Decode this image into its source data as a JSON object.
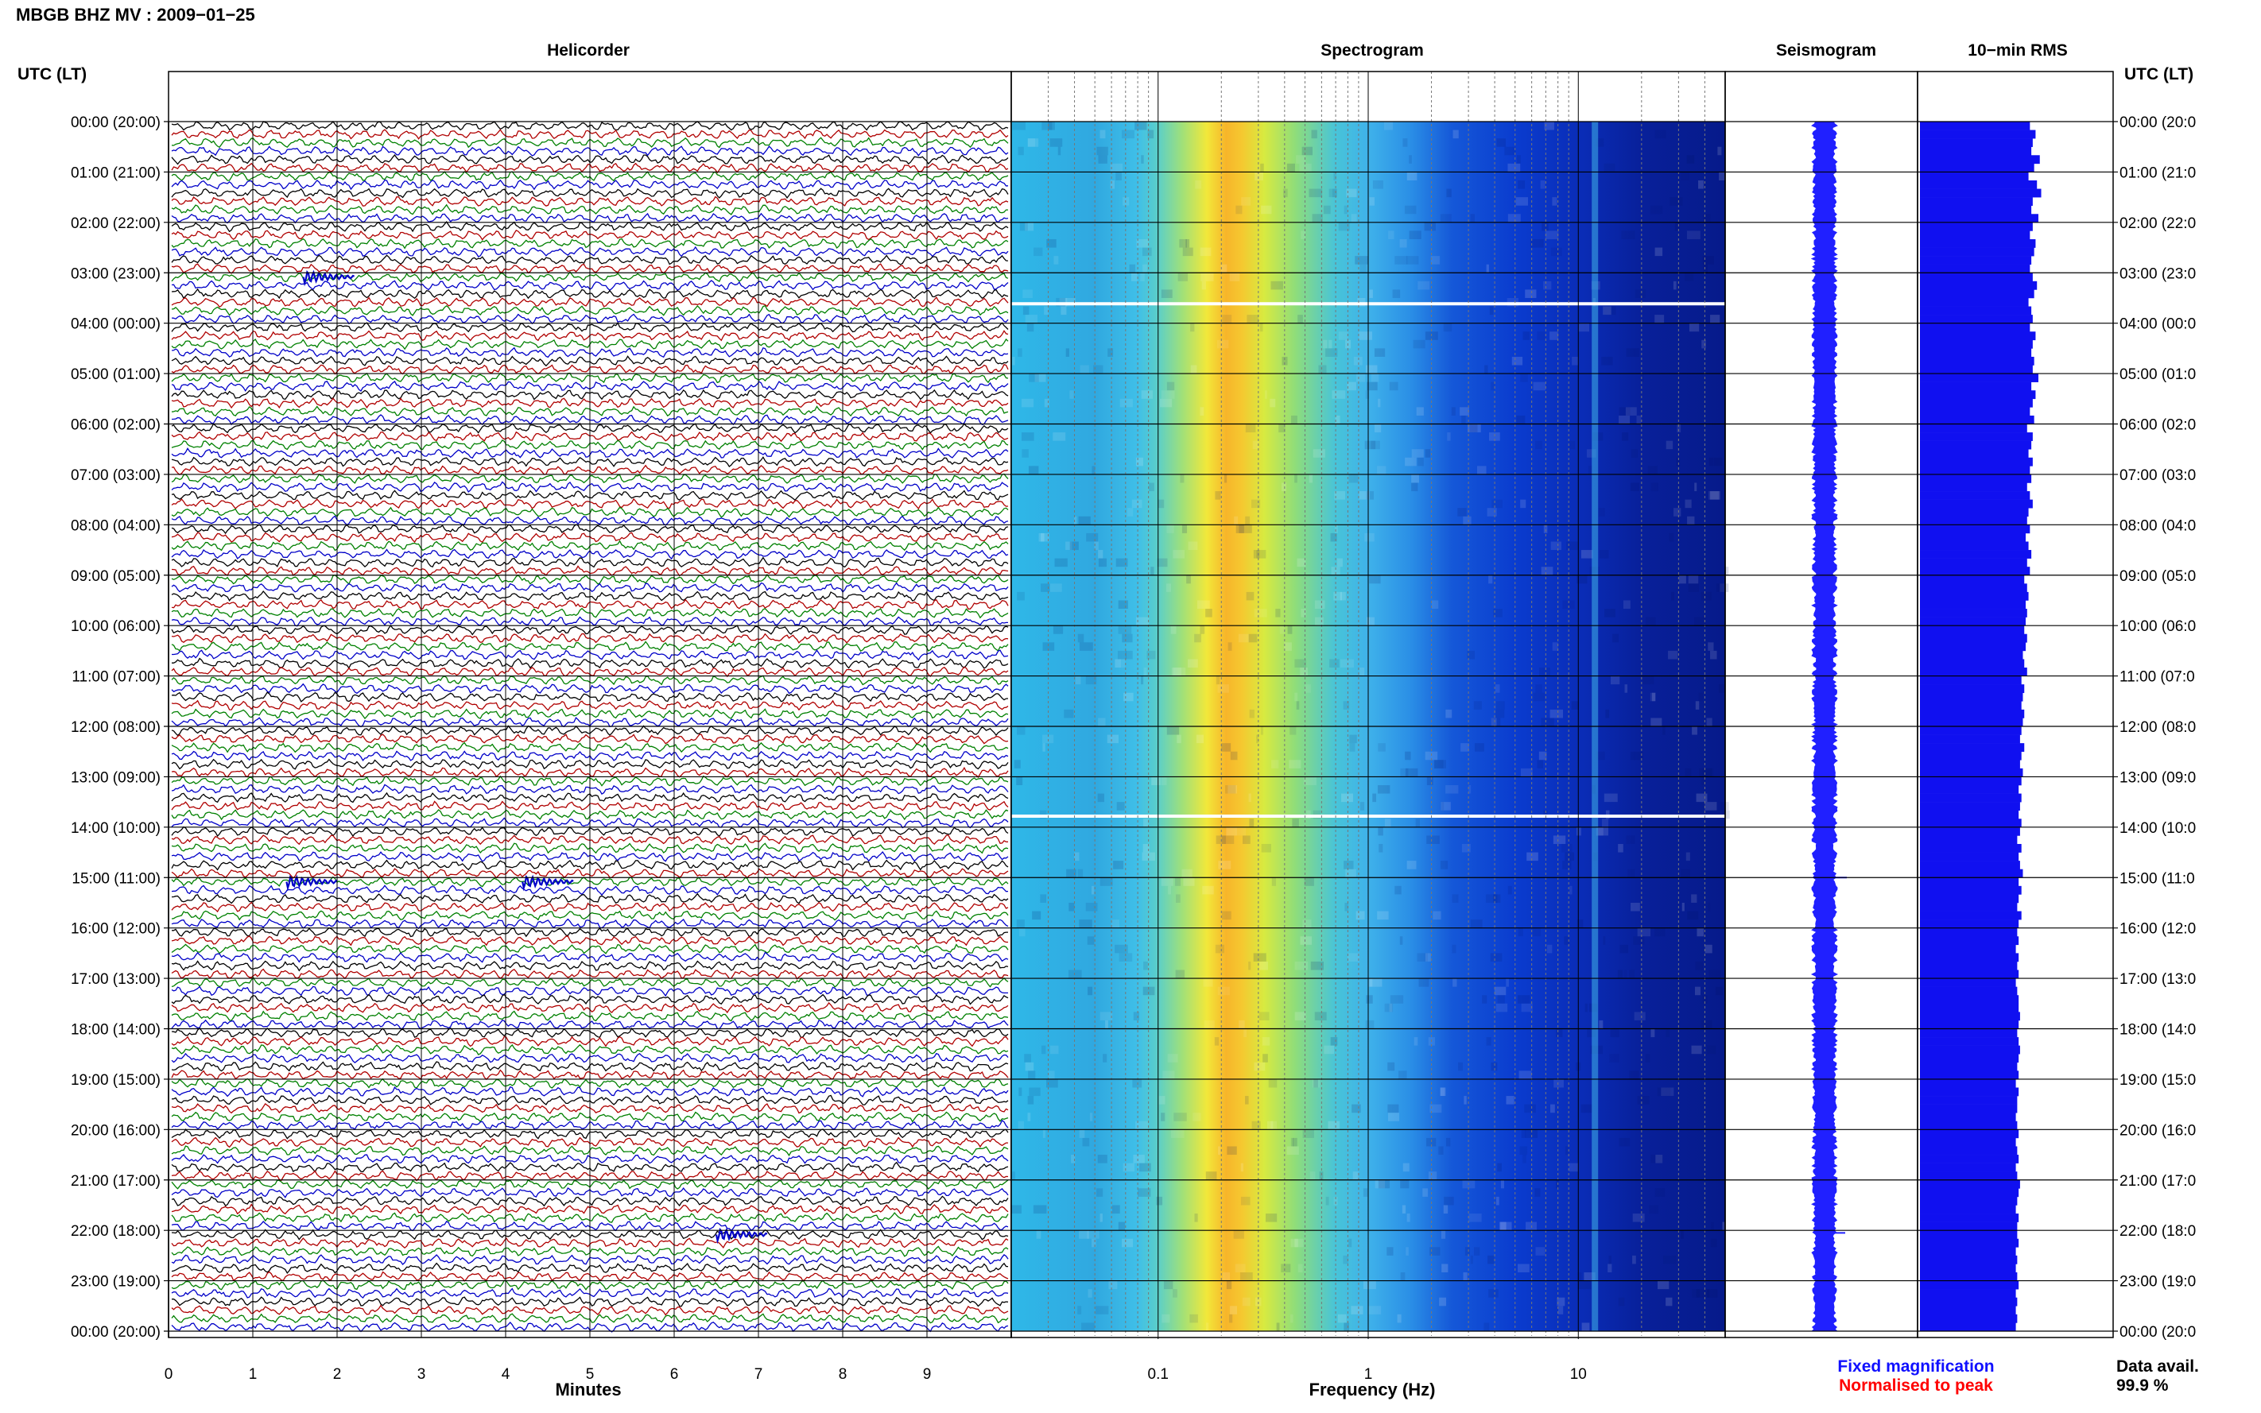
{
  "title": "MBGB BHZ MV : 2009−01−25",
  "panels": {
    "helicorder": "Helicorder",
    "spectrogram": "Spectrogram",
    "seismogram": "Seismogram",
    "rms": "10−min RMS"
  },
  "time_axis_label": "UTC (LT)",
  "time_labels": [
    "00:00 (20:00)",
    "01:00 (21:00)",
    "02:00 (22:00)",
    "03:00 (23:00)",
    "04:00 (00:00)",
    "05:00 (01:00)",
    "06:00 (02:00)",
    "07:00 (03:00)",
    "08:00 (04:00)",
    "09:00 (05:00)",
    "10:00 (06:00)",
    "11:00 (07:00)",
    "12:00 (08:00)",
    "13:00 (09:00)",
    "14:00 (10:00)",
    "15:00 (11:00)",
    "16:00 (12:00)",
    "17:00 (13:00)",
    "18:00 (14:00)",
    "19:00 (15:00)",
    "20:00 (16:00)",
    "21:00 (17:00)",
    "22:00 (18:00)",
    "23:00 (19:00)",
    "00:00 (20:00)"
  ],
  "right_time_labels": [
    "00:00 (20:0",
    "01:00 (21:0",
    "02:00 (22:0",
    "03:00 (23:0",
    "04:00 (00:0",
    "05:00 (01:0",
    "06:00 (02:0",
    "07:00 (03:0",
    "08:00 (04:0",
    "09:00 (05:0",
    "10:00 (06:0",
    "11:00 (07:0",
    "12:00 (08:0",
    "13:00 (09:0",
    "14:00 (10:0",
    "15:00 (11:0",
    "16:00 (12:0",
    "17:00 (13:0",
    "18:00 (14:0",
    "19:00 (15:0",
    "20:00 (16:0",
    "21:00 (17:0",
    "22:00 (18:0",
    "23:00 (19:0",
    "00:00 (20:0"
  ],
  "helicorder_xlabel": "Minutes",
  "helicorder_xticks": [
    "0",
    "1",
    "2",
    "3",
    "4",
    "5",
    "6",
    "7",
    "8",
    "9"
  ],
  "spectrogram_xlabel": "Frequency (Hz)",
  "spectrogram_xticks": [
    "0.1",
    "1",
    "10"
  ],
  "legend": {
    "fixed": "Fixed magnification",
    "normalised": "Normalised to peak"
  },
  "data_avail": {
    "label": "Data avail.",
    "value": "99.9 %"
  },
  "colors": {
    "trace_cycle": [
      "#000000",
      "#b00000",
      "#008000",
      "#0000c8"
    ],
    "seismogram": "#2020ff",
    "rms": "#1010f0",
    "legend_fixed": "#1010ff",
    "legend_normalised": "#ff0000"
  },
  "chart_data": [
    {
      "type": "line",
      "name": "Helicorder",
      "xlabel": "Minutes",
      "xlim": [
        0,
        10
      ],
      "rows_per_hour": 6,
      "hours": 24,
      "events": [
        {
          "hour": 3,
          "minute": 1.6
        },
        {
          "hour": 15,
          "minute": 1.4
        },
        {
          "hour": 15,
          "minute": 4.2
        },
        {
          "hour": 22,
          "minute": 6.5
        }
      ]
    },
    {
      "type": "heatmap",
      "name": "Spectrogram",
      "xlabel": "Frequency (Hz)",
      "xscale": "log",
      "xlim": [
        0.02,
        50
      ],
      "peak_band_hz": [
        0.15,
        0.4
      ],
      "spectral_line_hz": 12,
      "gaps_utc": [
        "03:35",
        "13:45"
      ]
    },
    {
      "type": "bar",
      "name": "10-min RMS",
      "orientation": "horizontal",
      "values": [
        0.78,
        0.82,
        0.8,
        0.79,
        0.85,
        0.81,
        0.77,
        0.83,
        0.86,
        0.8,
        0.79,
        0.84,
        0.8,
        0.78,
        0.82,
        0.81,
        0.79,
        0.78,
        0.8,
        0.83,
        0.81,
        0.77,
        0.79,
        0.8,
        0.78,
        0.82,
        0.8,
        0.79,
        0.81,
        0.8,
        0.84,
        0.79,
        0.82,
        0.8,
        0.78,
        0.81,
        0.76,
        0.8,
        0.79,
        0.77,
        0.8,
        0.78,
        0.79,
        0.76,
        0.78,
        0.8,
        0.77,
        0.76,
        0.78,
        0.75,
        0.77,
        0.79,
        0.76,
        0.78,
        0.74,
        0.76,
        0.77,
        0.75,
        0.76,
        0.75,
        0.74,
        0.76,
        0.75,
        0.73,
        0.74,
        0.76,
        0.72,
        0.74,
        0.73,
        0.72,
        0.74,
        0.73,
        0.72,
        0.71,
        0.74,
        0.72,
        0.71,
        0.73,
        0.72,
        0.7,
        0.72,
        0.71,
        0.7,
        0.72,
        0.71,
        0.69,
        0.72,
        0.7,
        0.71,
        0.73,
        0.7,
        0.72,
        0.7,
        0.69,
        0.72,
        0.7,
        0.69,
        0.7,
        0.68,
        0.7,
        0.69,
        0.7,
        0.68,
        0.69,
        0.7,
        0.7,
        0.71,
        0.7,
        0.69,
        0.7,
        0.71,
        0.7,
        0.69,
        0.7,
        0.68,
        0.7,
        0.69,
        0.69,
        0.68,
        0.69,
        0.7,
        0.68,
        0.69,
        0.7,
        0.68,
        0.69,
        0.71,
        0.7,
        0.69,
        0.68,
        0.7,
        0.69,
        0.69,
        0.7,
        0.68,
        0.69,
        0.68,
        0.69,
        0.7,
        0.68,
        0.69,
        0.68,
        0.69,
        0.68
      ]
    }
  ]
}
